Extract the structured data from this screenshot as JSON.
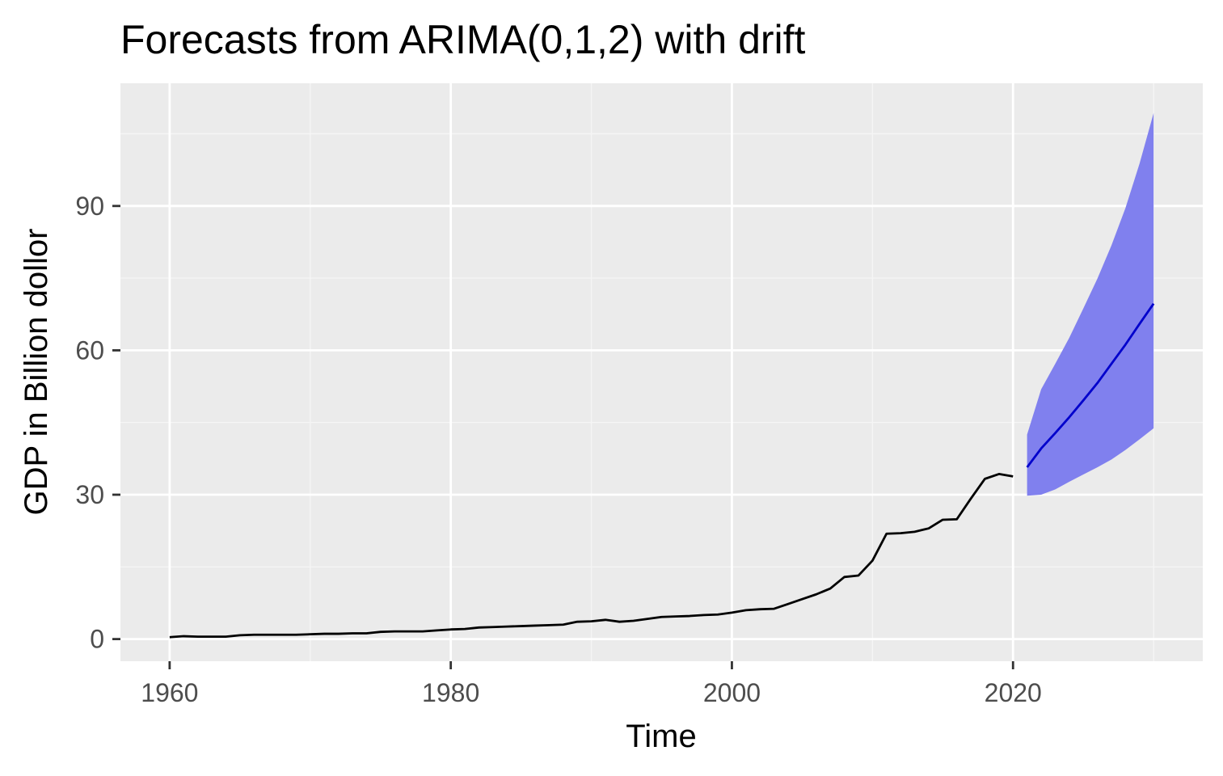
{
  "chart_data": {
    "type": "line",
    "title": "Forecasts from ARIMA(0,1,2) with drift",
    "xlabel": "Time",
    "ylabel": "GDP in Billion dollor",
    "xlim": [
      1956.5,
      2033.5
    ],
    "ylim": [
      -4.6,
      115.5
    ],
    "x_ticks": [
      1960,
      1980,
      2000,
      2020
    ],
    "y_ticks": [
      0,
      30,
      60,
      90
    ],
    "x_tick_labels": [
      "1960",
      "1980",
      "2000",
      "2020"
    ],
    "y_tick_labels": [
      "0",
      "30",
      "60",
      "90"
    ],
    "grid": true,
    "colors": {
      "panel_background": "#ebebeb",
      "grid_major": "#ffffff",
      "grid_minor": "#f5f5f5",
      "history_line": "#000000",
      "forecast_line": "#0000cc",
      "prediction_band": "#8080ee"
    },
    "series": [
      {
        "x": [
          1960,
          1961,
          1962,
          1963,
          1964,
          1965,
          1966,
          1967,
          1968,
          1969,
          1970,
          1971,
          1972,
          1973,
          1974,
          1975,
          1976,
          1977,
          1978,
          1979,
          1980,
          1981,
          1982,
          1983,
          1984,
          1985,
          1986,
          1987,
          1988,
          1989,
          1990,
          1991,
          1992,
          1993,
          1994,
          1995,
          1996,
          1997,
          1998,
          1999,
          2000,
          2001,
          2002,
          2003,
          2004,
          2005,
          2006,
          2007,
          2008,
          2009,
          2010,
          2011,
          2012,
          2013,
          2014,
          2015,
          2016,
          2017,
          2018,
          2019,
          2020
        ],
        "values": [
          0.4,
          0.6,
          0.5,
          0.5,
          0.5,
          0.8,
          0.9,
          0.9,
          0.9,
          0.9,
          1.0,
          1.1,
          1.1,
          1.2,
          1.2,
          1.5,
          1.6,
          1.6,
          1.6,
          1.8,
          2.0,
          2.1,
          2.4,
          2.5,
          2.6,
          2.7,
          2.8,
          2.9,
          3.0,
          3.6,
          3.7,
          4.0,
          3.6,
          3.8,
          4.2,
          4.6,
          4.7,
          4.8,
          5.0,
          5.1,
          5.5,
          6.0,
          6.2,
          6.3,
          7.3,
          8.3,
          9.3,
          10.5,
          12.9,
          13.2,
          16.3,
          21.9,
          22.0,
          22.3,
          23.0,
          24.8,
          24.9,
          29.2,
          33.3,
          34.3,
          33.8
        ]
      },
      {
        "x": [
          2021,
          2022,
          2023,
          2024,
          2025,
          2026,
          2027,
          2028,
          2029,
          2030
        ],
        "values": [
          35.7,
          39.6,
          42.8,
          46.1,
          49.6,
          53.2,
          57.2,
          61.2,
          65.5,
          69.7
        ],
        "lower": [
          29.8,
          30.0,
          31.1,
          32.7,
          34.2,
          35.7,
          37.3,
          39.3,
          41.5,
          43.8
        ],
        "upper": [
          42.5,
          51.9,
          57.2,
          62.6,
          68.7,
          74.9,
          81.8,
          89.6,
          98.8,
          109.3
        ]
      }
    ]
  }
}
